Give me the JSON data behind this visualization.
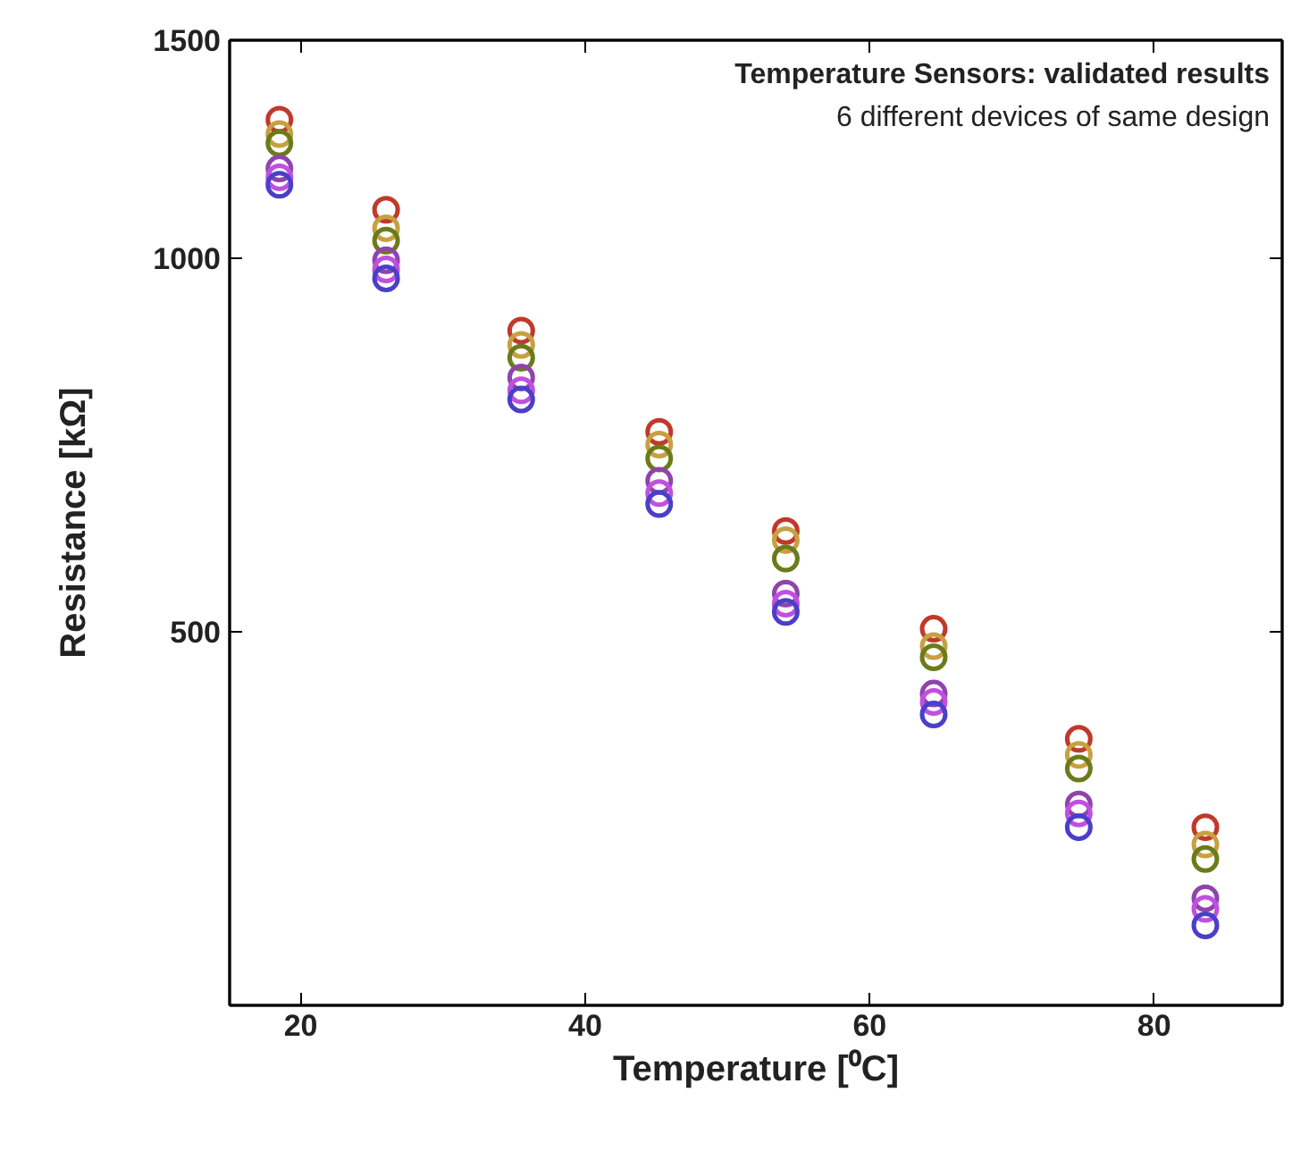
{
  "chart_data": {
    "type": "scatter",
    "xlabel": "Temperature [⁰C]",
    "ylabel": "Resistance [kΩ]",
    "annotations": [
      "Temperature Sensors: validated results",
      "6 different devices of same design"
    ],
    "x": [
      18.5,
      26.0,
      35.5,
      45.2,
      54.1,
      64.5,
      74.7,
      83.6
    ],
    "series": [
      {
        "color": "#c0392b",
        "values": [
          1294,
          1095,
          875,
          725,
          603,
          503,
          410,
          348
        ]
      },
      {
        "color": "#c8a040",
        "values": [
          1260,
          1058,
          852,
          708,
          593,
          487,
          398,
          337
        ]
      },
      {
        "color": "#6b7b1a",
        "values": [
          1239,
          1034,
          832,
          690,
          573,
          477,
          388,
          328
        ]
      },
      {
        "color": "#8e44ad",
        "values": [
          1182,
          997,
          802,
          662,
          537,
          446,
          363,
          305
        ]
      },
      {
        "color": "#c050e0",
        "values": [
          1163,
          980,
          783,
          647,
          527,
          439,
          357,
          299
        ]
      },
      {
        "color": "#4a3fc8",
        "values": [
          1147,
          964,
          770,
          634,
          519,
          429,
          348,
          290
        ]
      }
    ],
    "xlim": [
      15,
      89
    ],
    "ylim": [
      250,
      1500
    ],
    "xticks": [
      20,
      40,
      60,
      80
    ],
    "yticks": [
      500,
      1000,
      1500
    ],
    "log": "y",
    "grid": false,
    "marker": "circle"
  }
}
